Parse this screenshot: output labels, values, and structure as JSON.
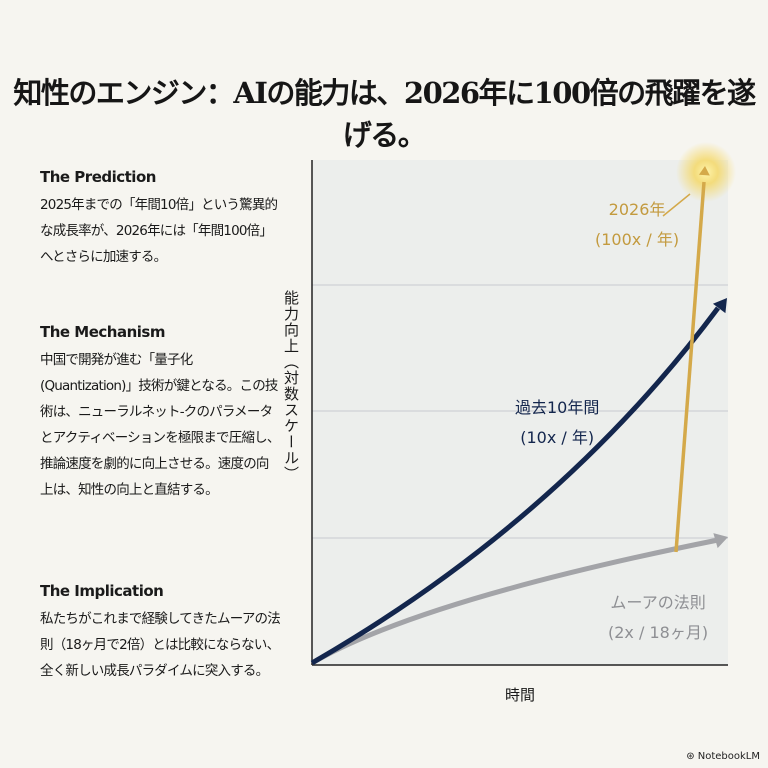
{
  "title": "知性のエンジン：AIの能力は、2026年に100倍の飛躍を遂げる。",
  "sections": [
    {
      "heading": "The Prediction",
      "body": "2025年までの「年間10倍」という驚異的な成長率が、2026年には「年間100倍」へとさらに加速する。"
    },
    {
      "heading": "The Mechanism",
      "body": "中国で開発が進む「量子化(Quantization)」技術が鍵となる。この技術は、ニューラルネット-クのパラメータとアクティベーションを極限まで圧縮し、推論速度を劇的に向上させる。速度の向上は、知性の向上と直結する。"
    },
    {
      "heading": "The Implication",
      "body": "私たちがこれまで経験してきたムーアの法則（18ヶ月で2倍）とは比較にならない、全く新しい成長パラダイムに突入する。"
    }
  ],
  "footer": "NotebookLM",
  "chart_data": {
    "type": "line",
    "xlabel": "時間",
    "ylabel": "能力向上（対数スケール）",
    "y_scale": "log",
    "grid": true,
    "colors": {
      "past": "#13264d",
      "moore": "#a3a4a8",
      "ai2026": "#d4a94a",
      "plot_bg": "#eceeec",
      "grid": "#c9cbd0"
    },
    "series": [
      {
        "key": "moore",
        "label_lines": [
          "ムーアの法則",
          "(2x / 18ヶ月)"
        ],
        "rate": "2x / 18ヶ月"
      },
      {
        "key": "past",
        "label_lines": [
          "過去10年間",
          "(10x / 年)"
        ],
        "rate": "10x / 年"
      },
      {
        "key": "ai2026",
        "label_lines": [
          "2026年",
          "(100x / 年)"
        ],
        "rate": "100x / 年"
      }
    ]
  }
}
